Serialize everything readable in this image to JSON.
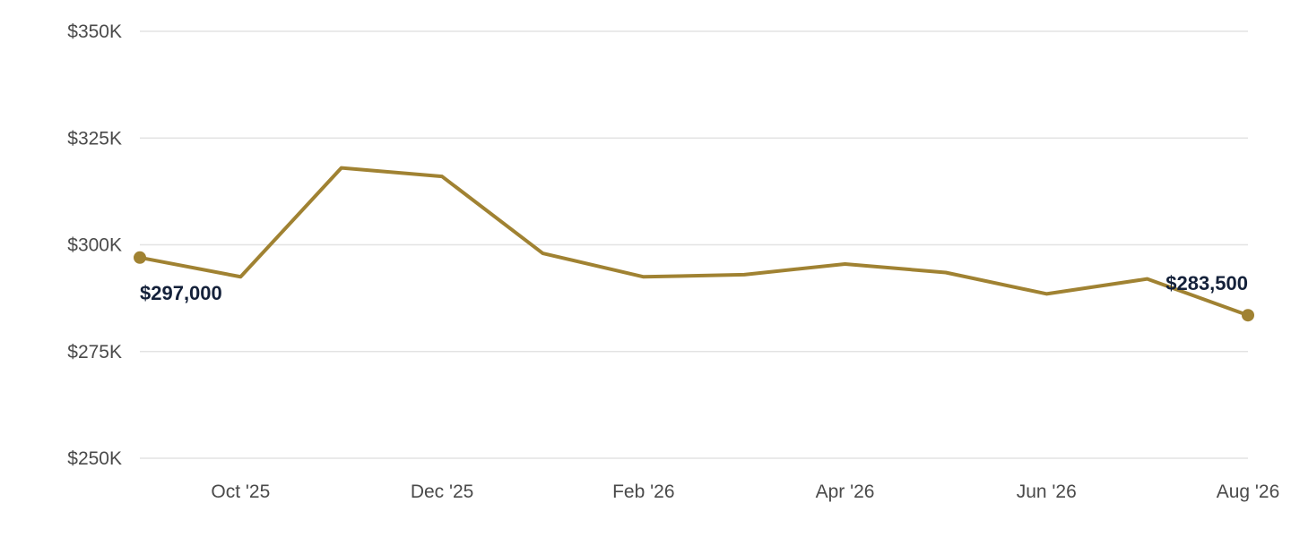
{
  "chart_data": {
    "type": "line",
    "x": [
      "Sep '25",
      "Oct '25",
      "Nov '25",
      "Dec '25",
      "Jan '26",
      "Feb '26",
      "Mar '26",
      "Apr '26",
      "May '26",
      "Jun '26",
      "Jul '26",
      "Aug '26"
    ],
    "x_tick_labels": [
      "Oct '25",
      "Dec '25",
      "Feb '26",
      "Apr '26",
      "Jun '26",
      "Aug '26"
    ],
    "series": [
      {
        "values": [
          297000,
          292500,
          318000,
          316000,
          298000,
          292500,
          293000,
          295500,
          293500,
          288500,
          292000,
          283500
        ]
      }
    ],
    "y_ticks": [
      250000,
      275000,
      300000,
      325000,
      350000
    ],
    "y_tick_labels": [
      "$250K",
      "$275K",
      "$300K",
      "$325K",
      "$350K"
    ],
    "ylim": [
      250000,
      350000
    ],
    "grid": true,
    "line_color": "#a08232",
    "annotations": [
      {
        "point": "Sep '25",
        "text": "$297,000"
      },
      {
        "point": "Aug '26",
        "text": "$283,500"
      }
    ],
    "title": "",
    "xlabel": "",
    "ylabel": ""
  }
}
